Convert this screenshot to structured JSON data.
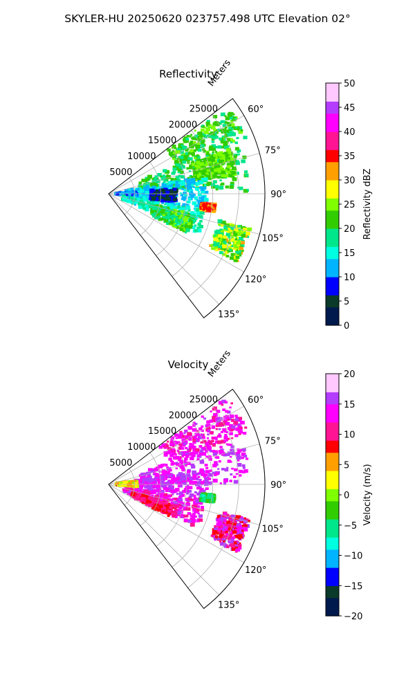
{
  "figure": {
    "title": "SKYLER-HU  20250620  023757.498 UTC Elevation 02°"
  },
  "chart_data": [
    {
      "type": "heatmap",
      "subtype": "polar-sector-radar",
      "title": "Reflectivity",
      "radial_axis_label": "Meters",
      "radial_ticks": [
        5000,
        10000,
        15000,
        20000,
        25000
      ],
      "radial_tick_labels": [
        "5000",
        "10000",
        "15000",
        "20000",
        "25000"
      ],
      "radial_range": [
        0,
        30000
      ],
      "azimuth_range_deg": [
        52.5,
        142.5
      ],
      "azimuth_ticks_deg": [
        60,
        75,
        90,
        105,
        120,
        135
      ],
      "azimuth_tick_labels": [
        "60°",
        "75°",
        "90°",
        "105°",
        "120°",
        "135°"
      ],
      "grid": true,
      "colorbar": {
        "label": "Reflectivity dBZ",
        "range": [
          0,
          50
        ],
        "ticks": [
          0,
          5,
          10,
          15,
          20,
          25,
          30,
          35,
          40,
          45,
          50
        ],
        "tick_labels": [
          "0",
          "5",
          "10",
          "15",
          "20",
          "25",
          "30",
          "35",
          "40",
          "45",
          "50"
        ],
        "palette": [
          "#001a4d",
          "#0a3a2a",
          "#0000ff",
          "#00b4ff",
          "#00ffe1",
          "#00e68a",
          "#32cd00",
          "#7fff00",
          "#ffff00",
          "#ffa000",
          "#ff0000",
          "#ff1493",
          "#ff00ff",
          "#b43cff",
          "#ffc8ff"
        ]
      },
      "regions": [
        {
          "az": [
            54,
            68
          ],
          "r": [
            14000,
            28500
          ],
          "value": 21,
          "spread": 3
        },
        {
          "az": [
            68,
            89
          ],
          "r": [
            6000,
            27000
          ],
          "value": 20,
          "spread": 3
        },
        {
          "az": [
            70,
            82
          ],
          "r": [
            17000,
            25000
          ],
          "value": 23,
          "spread": 2
        },
        {
          "az": [
            80,
            100
          ],
          "r": [
            3000,
            19000
          ],
          "value": 13,
          "spread": 2
        },
        {
          "az": [
            88,
            96
          ],
          "r": [
            1500,
            5500
          ],
          "value": 11,
          "spread": 2
        },
        {
          "az": [
            100,
            114
          ],
          "r": [
            3000,
            19000
          ],
          "value": 16,
          "spread": 3
        },
        {
          "az": [
            104,
            117
          ],
          "r": [
            9000,
            17000
          ],
          "value": 21,
          "spread": 4
        },
        {
          "az": [
            96,
            100
          ],
          "r": [
            18000,
            20500
          ],
          "value": 33,
          "spread": 4
        },
        {
          "az": [
            104,
            118
          ],
          "r": [
            22000,
            28000
          ],
          "value": 24,
          "spread": 7
        },
        {
          "az": [
            86,
            98
          ],
          "r": [
            8000,
            13000
          ],
          "value": 7,
          "spread": 3
        }
      ]
    },
    {
      "type": "heatmap",
      "subtype": "polar-sector-radar",
      "title": "Velocity",
      "radial_axis_label": "Meters",
      "radial_ticks": [
        5000,
        10000,
        15000,
        20000,
        25000
      ],
      "radial_tick_labels": [
        "5000",
        "10000",
        "15000",
        "20000",
        "25000"
      ],
      "radial_range": [
        0,
        30000
      ],
      "azimuth_range_deg": [
        52.5,
        142.5
      ],
      "azimuth_ticks_deg": [
        60,
        75,
        90,
        105,
        120,
        135
      ],
      "azimuth_tick_labels": [
        "60°",
        "75°",
        "90°",
        "105°",
        "120°",
        "135°"
      ],
      "grid": true,
      "colorbar": {
        "label": "Velocity (m/s)",
        "range": [
          -20,
          20
        ],
        "ticks": [
          -20,
          -15,
          -10,
          -5,
          0,
          5,
          10,
          15,
          20
        ],
        "tick_labels": [
          "−20",
          "−15",
          "−10",
          "−5",
          "0",
          "5",
          "10",
          "15",
          "20"
        ],
        "palette": [
          "#001a4d",
          "#0a3a2a",
          "#0000ff",
          "#00b4ff",
          "#00ffe1",
          "#00e68a",
          "#32cd00",
          "#7fff00",
          "#ffff00",
          "#ffa000",
          "#ff0000",
          "#ff1493",
          "#ff00ff",
          "#b43cff",
          "#ffc8ff"
        ]
      },
      "regions": [
        {
          "az": [
            54,
            70
          ],
          "r": [
            12000,
            28500
          ],
          "value": 13,
          "spread": 2
        },
        {
          "az": [
            70,
            90
          ],
          "r": [
            6000,
            27000
          ],
          "value": 14,
          "spread": 2
        },
        {
          "az": [
            82,
            100
          ],
          "r": [
            3000,
            19000
          ],
          "value": 15,
          "spread": 2
        },
        {
          "az": [
            100,
            116
          ],
          "r": [
            3000,
            19000
          ],
          "value": 13,
          "spread": 2
        },
        {
          "az": [
            108,
            118
          ],
          "r": [
            5000,
            14000
          ],
          "value": 10,
          "spread": 2
        },
        {
          "az": [
            96,
            100
          ],
          "r": [
            18000,
            20500
          ],
          "value": -4,
          "spread": 3
        },
        {
          "az": [
            104,
            118
          ],
          "r": [
            22000,
            28000
          ],
          "value": 12,
          "spread": 5
        },
        {
          "az": [
            84,
            96
          ],
          "r": [
            1500,
            5500
          ],
          "value": 3,
          "spread": 4
        }
      ]
    }
  ]
}
